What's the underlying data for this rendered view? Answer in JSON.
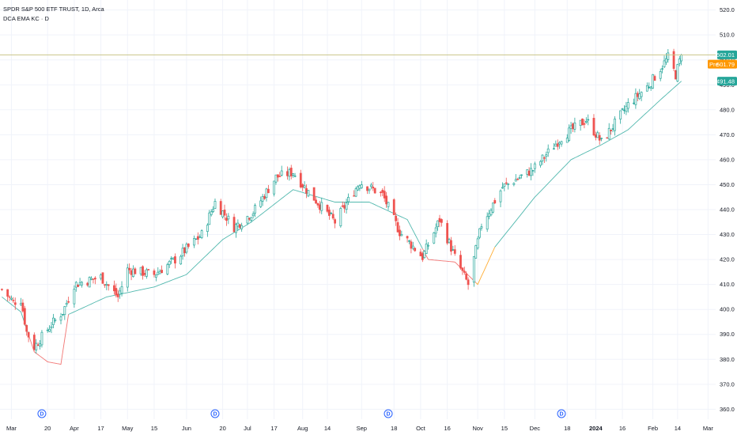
{
  "legend": {
    "symbol_line": "SPDR S&P 500 ETF TRUST, 1D, Arca",
    "indicator_line": "DCA EMA KC · D"
  },
  "colors": {
    "up": "#26a69a",
    "down": "#ef5350",
    "line_green": "#26a69a",
    "line_red": "#ef5350",
    "line_orange": "#ff9800",
    "price_line": "#c9c48a",
    "grid": "#f0f3fa",
    "last_tag": "#26a69a",
    "pre_tag": "#ff9800",
    "ind_tag": "#26a69a",
    "dividend": "#2962ff"
  },
  "price_tags": {
    "last": "502.01",
    "pre_label": "Pre",
    "pre": "501.79",
    "indicator": "491.48"
  },
  "dividend_label": "D",
  "chart_data": {
    "type": "candlestick",
    "title": "SPDR S&P 500 ETF TRUST, 1D, Arca",
    "y_axis": {
      "ticks": [
        360,
        370,
        380,
        390,
        400,
        410,
        420,
        430,
        440,
        450,
        460,
        470,
        480,
        490,
        500,
        510,
        520
      ],
      "range": [
        356,
        524
      ]
    },
    "x_axis": {
      "labels": [
        {
          "text": "Mar",
          "date": "2023-03-01",
          "bold": false
        },
        {
          "text": "20",
          "date": "2023-03-20",
          "bold": false
        },
        {
          "text": "Apr",
          "date": "2023-04-03",
          "bold": false
        },
        {
          "text": "17",
          "date": "2023-04-17",
          "bold": false
        },
        {
          "text": "May",
          "date": "2023-05-01",
          "bold": false
        },
        {
          "text": "15",
          "date": "2023-05-15",
          "bold": false
        },
        {
          "text": "Jun",
          "date": "2023-06-01",
          "bold": false
        },
        {
          "text": "20",
          "date": "2023-06-20",
          "bold": false
        },
        {
          "text": "Jul",
          "date": "2023-07-03",
          "bold": false
        },
        {
          "text": "17",
          "date": "2023-07-17",
          "bold": false
        },
        {
          "text": "Aug",
          "date": "2023-08-01",
          "bold": false
        },
        {
          "text": "14",
          "date": "2023-08-14",
          "bold": false
        },
        {
          "text": "Sep",
          "date": "2023-09-01",
          "bold": false
        },
        {
          "text": "18",
          "date": "2023-09-18",
          "bold": false
        },
        {
          "text": "Oct",
          "date": "2023-10-02",
          "bold": false
        },
        {
          "text": "16",
          "date": "2023-10-16",
          "bold": false
        },
        {
          "text": "Nov",
          "date": "2023-11-01",
          "bold": false
        },
        {
          "text": "15",
          "date": "2023-11-15",
          "bold": false
        },
        {
          "text": "Dec",
          "date": "2023-12-01",
          "bold": false
        },
        {
          "text": "18",
          "date": "2023-12-18",
          "bold": false
        },
        {
          "text": "2024",
          "date": "2024-01-02",
          "bold": true
        },
        {
          "text": "16",
          "date": "2024-01-16",
          "bold": false
        },
        {
          "text": "Feb",
          "date": "2024-02-01",
          "bold": false
        },
        {
          "text": "14",
          "date": "2024-02-14",
          "bold": false
        },
        {
          "text": "Mar",
          "date": "2024-03-01",
          "bold": false
        }
      ],
      "range": [
        "2023-02-23",
        "2024-03-05"
      ]
    },
    "dividend_dates": [
      "2023-03-17",
      "2023-06-16",
      "2023-09-15",
      "2023-12-15"
    ],
    "last_price": 502.01,
    "pre_price": 501.79,
    "indicator_last": 491.48,
    "anchors": [
      {
        "date": "2023-02-24",
        "close": 408
      },
      {
        "date": "2023-03-02",
        "close": 403
      },
      {
        "date": "2023-03-06",
        "close": 404
      },
      {
        "date": "2023-03-09",
        "close": 391
      },
      {
        "date": "2023-03-13",
        "close": 385
      },
      {
        "date": "2023-03-17",
        "close": 389
      },
      {
        "date": "2023-03-22",
        "close": 394
      },
      {
        "date": "2023-03-28",
        "close": 399
      },
      {
        "date": "2023-04-03",
        "close": 410
      },
      {
        "date": "2023-04-17",
        "close": 413
      },
      {
        "date": "2023-04-26",
        "close": 405
      },
      {
        "date": "2023-05-01",
        "close": 416
      },
      {
        "date": "2023-05-15",
        "close": 414
      },
      {
        "date": "2023-05-26",
        "close": 420
      },
      {
        "date": "2023-06-09",
        "close": 430
      },
      {
        "date": "2023-06-16",
        "close": 443
      },
      {
        "date": "2023-06-26",
        "close": 433
      },
      {
        "date": "2023-07-06",
        "close": 439
      },
      {
        "date": "2023-07-18",
        "close": 453
      },
      {
        "date": "2023-07-27",
        "close": 455
      },
      {
        "date": "2023-08-03",
        "close": 448
      },
      {
        "date": "2023-08-18",
        "close": 435
      },
      {
        "date": "2023-08-31",
        "close": 451
      },
      {
        "date": "2023-09-12",
        "close": 446
      },
      {
        "date": "2023-09-21",
        "close": 431
      },
      {
        "date": "2023-10-03",
        "close": 421
      },
      {
        "date": "2023-10-12",
        "close": 436
      },
      {
        "date": "2023-10-20",
        "close": 421
      },
      {
        "date": "2023-10-27",
        "close": 410
      },
      {
        "date": "2023-11-03",
        "close": 434
      },
      {
        "date": "2023-11-14",
        "close": 449
      },
      {
        "date": "2023-11-30",
        "close": 456
      },
      {
        "date": "2023-12-15",
        "close": 469
      },
      {
        "date": "2023-12-28",
        "close": 476
      },
      {
        "date": "2024-01-05",
        "close": 467
      },
      {
        "date": "2024-01-19",
        "close": 482
      },
      {
        "date": "2024-01-30",
        "close": 490
      },
      {
        "date": "2024-02-09",
        "close": 501
      },
      {
        "date": "2024-02-13",
        "close": 494
      },
      {
        "date": "2024-02-16",
        "close": 502
      }
    ],
    "indicator_anchors": [
      {
        "date": "2023-02-24",
        "value": 405
      },
      {
        "date": "2023-03-06",
        "value": 399
      },
      {
        "date": "2023-03-13",
        "value": 383
      },
      {
        "date": "2023-03-20",
        "value": 379
      },
      {
        "date": "2023-03-27",
        "value": 378
      },
      {
        "date": "2023-03-31",
        "value": 398
      },
      {
        "date": "2023-04-20",
        "value": 405
      },
      {
        "date": "2023-05-15",
        "value": 409
      },
      {
        "date": "2023-06-01",
        "value": 414
      },
      {
        "date": "2023-06-20",
        "value": 428
      },
      {
        "date": "2023-07-05",
        "value": 435
      },
      {
        "date": "2023-07-27",
        "value": 448
      },
      {
        "date": "2023-08-18",
        "value": 443
      },
      {
        "date": "2023-09-05",
        "value": 443
      },
      {
        "date": "2023-09-25",
        "value": 436
      },
      {
        "date": "2023-10-06",
        "value": 420
      },
      {
        "date": "2023-10-20",
        "value": 419
      },
      {
        "date": "2023-11-01",
        "value": 410
      },
      {
        "date": "2023-11-10",
        "value": 425
      },
      {
        "date": "2023-12-01",
        "value": 445
      },
      {
        "date": "2023-12-20",
        "value": 460
      },
      {
        "date": "2024-01-05",
        "value": 466
      },
      {
        "date": "2024-01-19",
        "value": 472
      },
      {
        "date": "2024-02-05",
        "value": 484
      },
      {
        "date": "2024-02-16",
        "value": 491.48
      }
    ],
    "indicator_segments": [
      {
        "from": "2023-02-24",
        "to": "2023-03-10",
        "color": "line_green"
      },
      {
        "from": "2023-03-10",
        "to": "2023-03-31",
        "color": "line_red"
      },
      {
        "from": "2023-03-31",
        "to": "2023-10-03",
        "color": "line_green"
      },
      {
        "from": "2023-10-03",
        "to": "2023-10-31",
        "color": "line_red"
      },
      {
        "from": "2023-10-31",
        "to": "2023-11-10",
        "color": "line_orange"
      },
      {
        "from": "2023-11-10",
        "to": "2024-02-16",
        "color": "line_green"
      }
    ]
  }
}
